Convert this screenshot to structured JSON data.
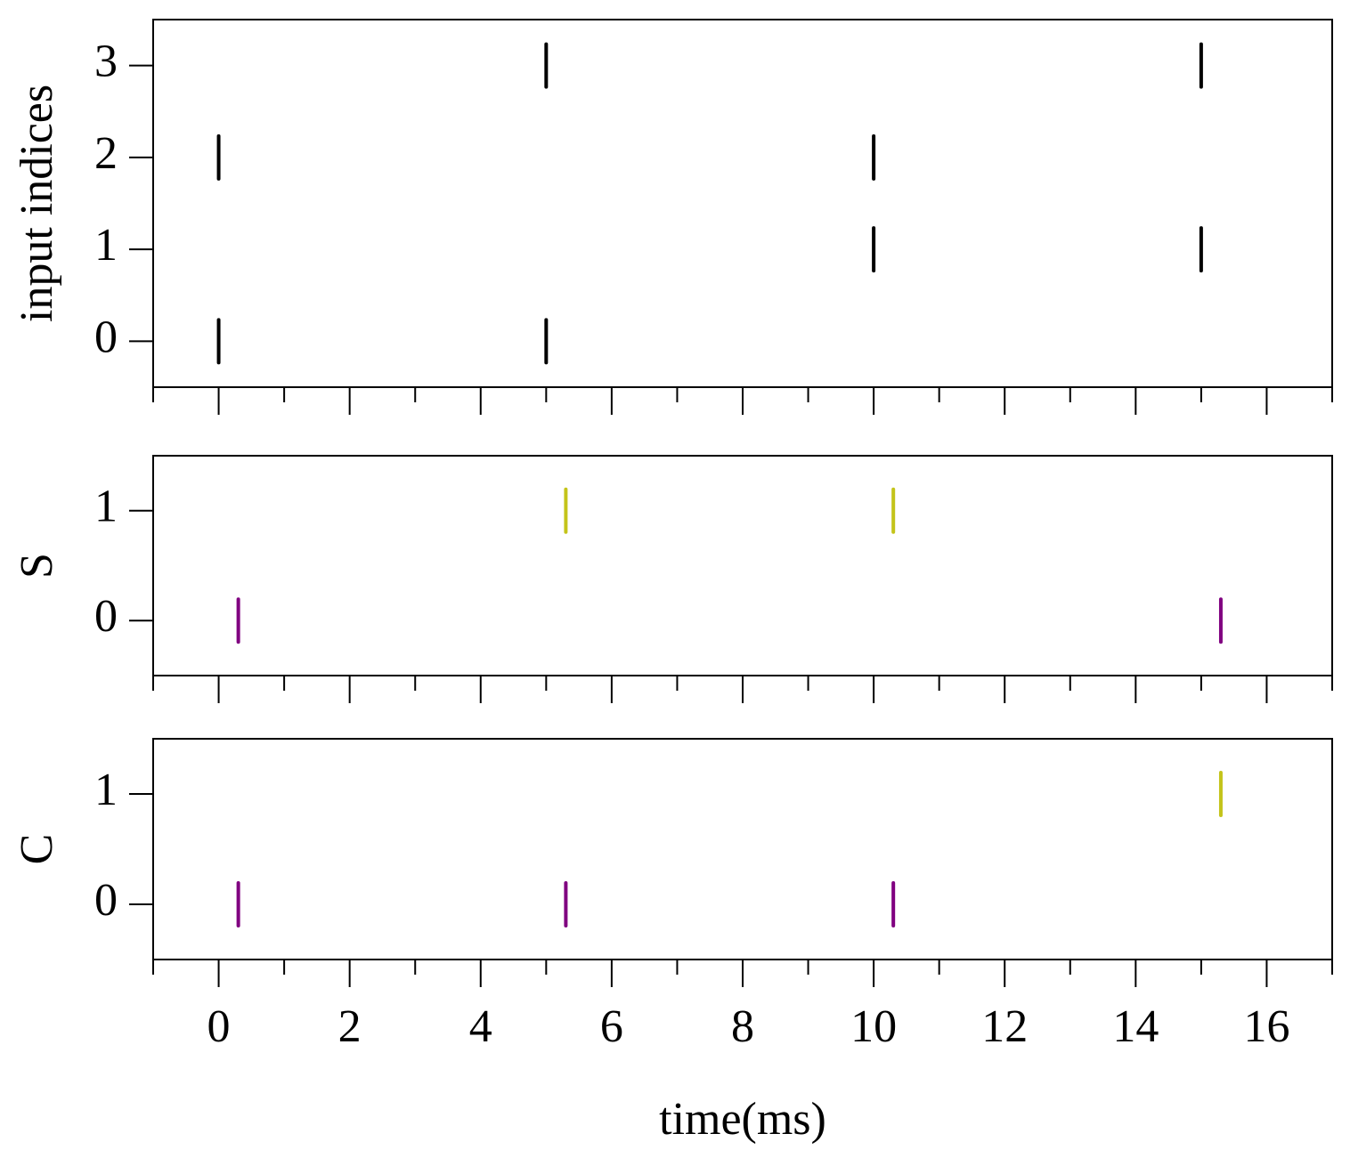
{
  "chart_data": [
    {
      "type": "raster",
      "ylabel": "input indices",
      "xlim": [
        -1,
        17
      ],
      "xticks": [
        0,
        2,
        4,
        6,
        8,
        10,
        12,
        14,
        16
      ],
      "xminor_ticks": [
        -1,
        1,
        3,
        5,
        7,
        9,
        11,
        13,
        15,
        17
      ],
      "show_xticklabels": false,
      "ylim": [
        -0.5,
        3.5
      ],
      "yticks": [
        0,
        1,
        2,
        3
      ],
      "series": [
        {
          "color": "#000000",
          "x": [
            0,
            5,
            10,
            15,
            0,
            10,
            5,
            15
          ],
          "values": [
            0,
            0,
            1,
            1,
            2,
            2,
            3,
            3
          ]
        }
      ]
    },
    {
      "type": "raster",
      "ylabel": "S",
      "xlim": [
        -1,
        17
      ],
      "xticks": [
        0,
        2,
        4,
        6,
        8,
        10,
        12,
        14,
        16
      ],
      "xminor_ticks": [
        -1,
        1,
        3,
        5,
        7,
        9,
        11,
        13,
        15,
        17
      ],
      "show_xticklabels": false,
      "ylim": [
        -0.5,
        1.5
      ],
      "yticks": [
        0,
        1
      ],
      "series": [
        {
          "color": "#800080",
          "x": [
            0.3,
            15.3
          ],
          "values": [
            0,
            0
          ]
        },
        {
          "color": "#c4c41a",
          "x": [
            5.3,
            10.3
          ],
          "values": [
            1,
            1
          ]
        }
      ]
    },
    {
      "type": "raster",
      "ylabel": "C",
      "xlabel": "time(ms)",
      "xlim": [
        -1,
        17
      ],
      "xticks": [
        0,
        2,
        4,
        6,
        8,
        10,
        12,
        14,
        16
      ],
      "xminor_ticks": [
        -1,
        1,
        3,
        5,
        7,
        9,
        11,
        13,
        15,
        17
      ],
      "show_xticklabels": true,
      "ylim": [
        -0.5,
        1.5
      ],
      "yticks": [
        0,
        1
      ],
      "series": [
        {
          "color": "#800080",
          "x": [
            0.3,
            5.3,
            10.3
          ],
          "values": [
            0,
            0,
            0
          ]
        },
        {
          "color": "#c4c41a",
          "x": [
            15.3
          ],
          "values": [
            1
          ]
        }
      ]
    }
  ]
}
